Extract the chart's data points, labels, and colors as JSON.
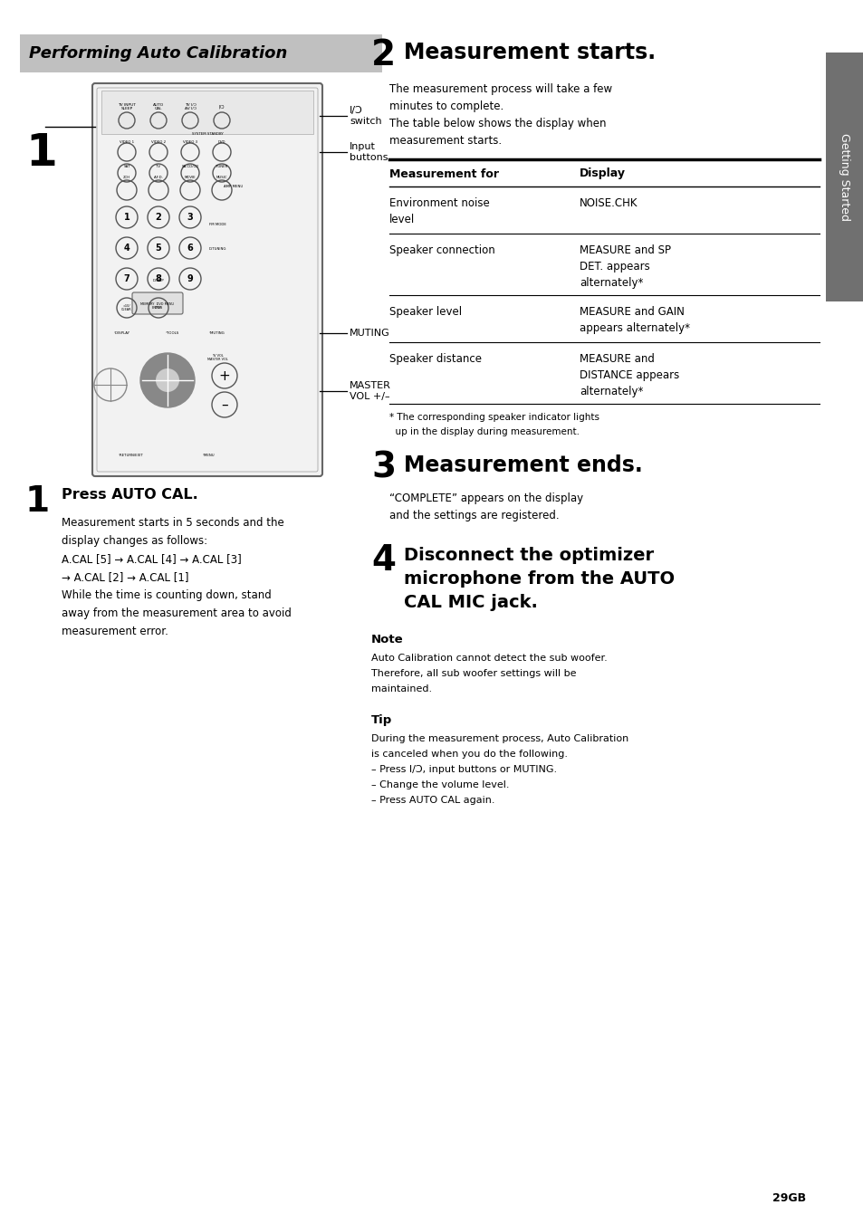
{
  "page_bg": "#ffffff",
  "header_bg": "#c0c0c0",
  "header_text": "Performing Auto Calibration",
  "header_text_color": "#000000",
  "sidebar_bg": "#707070",
  "sidebar_text": "Getting Started",
  "sidebar_text_color": "#ffffff",
  "section2_title_num": "2",
  "section2_title": "Measurement starts.",
  "section2_body": [
    "The measurement process will take a few",
    "minutes to complete.",
    "The table below shows the display when",
    "measurement starts."
  ],
  "table_header": [
    "Measurement for",
    "Display"
  ],
  "table_rows": [
    [
      "Environment noise\nlevel",
      "NOISE.CHK"
    ],
    [
      "Speaker connection",
      "MEASURE and SP\nDET. appears\nalternately*"
    ],
    [
      "Speaker level",
      "MEASURE and GAIN\nappears alternately*"
    ],
    [
      "Speaker distance",
      "MEASURE and\nDISTANCE appears\nalternately*"
    ]
  ],
  "table_footnote": "* The corresponding speaker indicator lights\n  up in the display during measurement.",
  "section3_title_num": "3",
  "section3_title": "Measurement ends.",
  "section3_body": [
    "“COMPLETE” appears on the display",
    "and the settings are registered."
  ],
  "section4_title_num": "4",
  "section4_title": "Disconnect the optimizer\nmicrophone from the AUTO\nCAL MIC jack.",
  "note_title": "Note",
  "note_body": [
    "Auto Calibration cannot detect the sub woofer.",
    "Therefore, all sub woofer settings will be",
    "maintained."
  ],
  "tip_title": "Tip",
  "tip_body": [
    "During the measurement process, Auto Calibration",
    "is canceled when you do the following.",
    "– Press I/Ɔ, input buttons or MUTING.",
    "– Change the volume level.",
    "– Press AUTO CAL again."
  ],
  "step1_num": "1",
  "step1_title": "Press AUTO CAL.",
  "step1_body": [
    "Measurement starts in 5 seconds and the",
    "display changes as follows:",
    "A.CAL [5] → A.CAL [4] → A.CAL [3]",
    "→ A.CAL [2] → A.CAL [1]",
    "While the time is counting down, stand",
    "away from the measurement area to avoid",
    "measurement error."
  ],
  "lbl_switch": "I/Ɔ\nswitch",
  "lbl_input": "Input\nbuttons",
  "lbl_muting": "MUTING",
  "lbl_mastervol": "MASTER\nVOL +/–",
  "page_number": "29GB"
}
